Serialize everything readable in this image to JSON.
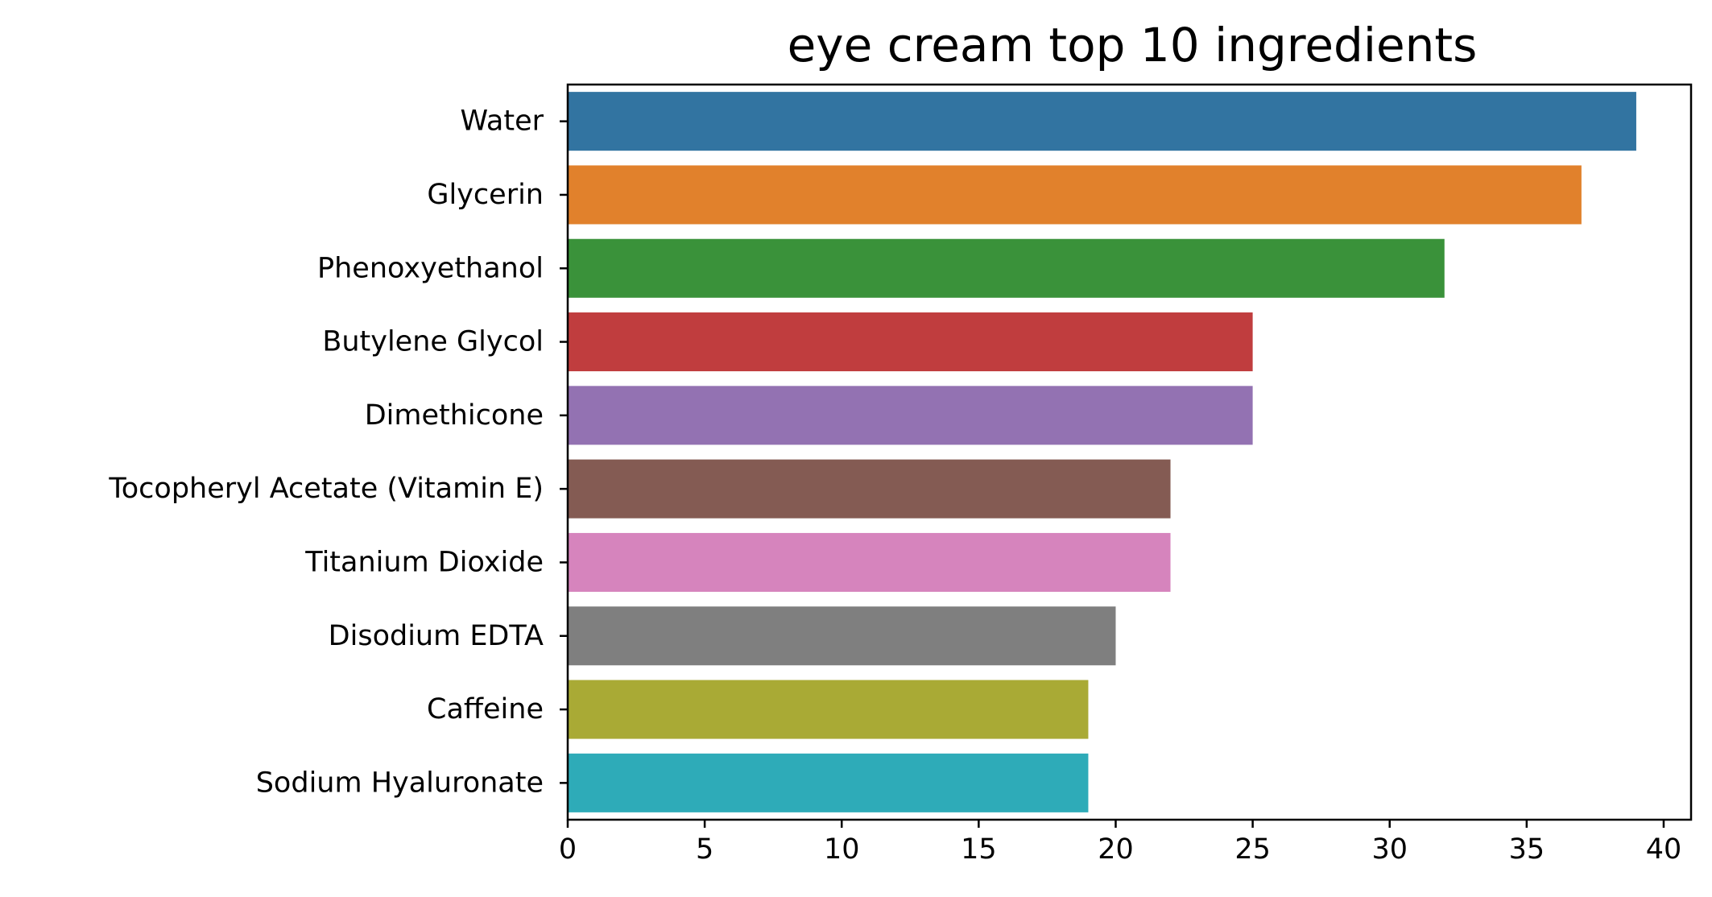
{
  "chart_data": {
    "type": "bar",
    "orientation": "horizontal",
    "title": "eye cream top 10 ingredients",
    "xlabel": "",
    "ylabel": "",
    "xlim": [
      0,
      41
    ],
    "xticks": [
      0,
      5,
      10,
      15,
      20,
      25,
      30,
      35,
      40
    ],
    "grid": false,
    "categories": [
      "Water",
      "Glycerin",
      "Phenoxyethanol",
      "Butylene Glycol",
      "Dimethicone",
      "Tocopheryl Acetate (Vitamin E)",
      "Titanium Dioxide",
      "Disodium EDTA",
      "Caffeine",
      "Sodium Hyaluronate"
    ],
    "values": [
      39,
      37,
      32,
      25,
      25,
      22,
      22,
      20,
      19,
      19
    ],
    "colors": [
      "#3274a1",
      "#e1812c",
      "#3a923a",
      "#c03d3e",
      "#9372b2",
      "#845b53",
      "#d684bd",
      "#7f7f7f",
      "#a9aa35",
      "#2eabb8"
    ]
  }
}
